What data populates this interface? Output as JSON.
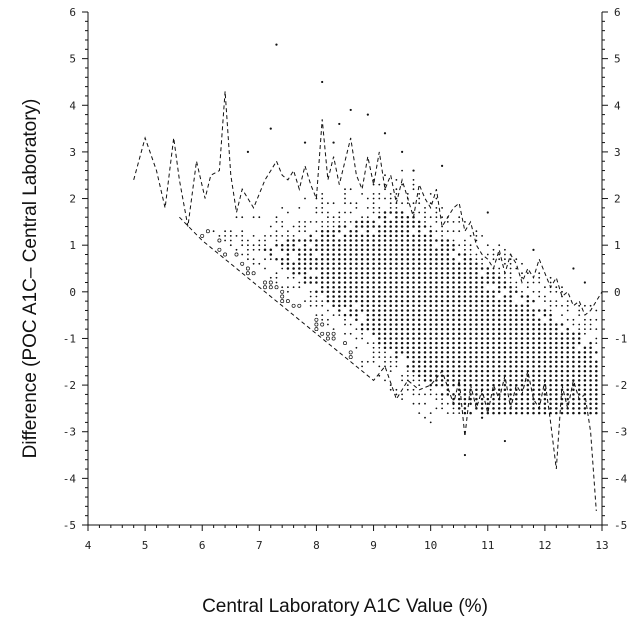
{
  "chart_data": {
    "type": "scatter",
    "title": "",
    "xlabel": "Central Laboratory A1C Value (%)",
    "ylabel": "Difference  (POC A1C– Central Laboratory)",
    "xlim": [
      4,
      13
    ],
    "ylim": [
      -5,
      6
    ],
    "xticks": [
      "4",
      "5",
      "6",
      "7",
      "8",
      "9",
      "10",
      "11",
      "12",
      "13"
    ],
    "yticks": [
      "-5",
      "-4",
      "-3",
      "-2",
      "-1",
      "0",
      "1",
      "2",
      "3",
      "4",
      "5",
      "6"
    ],
    "grid": false,
    "legend": "none",
    "colors": {
      "ink": "#111111",
      "background": "#ffffff"
    },
    "series": [
      {
        "kind": "dashed-line",
        "x": [
          4.8,
          5.0,
          5.2,
          5.35,
          5.5,
          5.6,
          5.75,
          5.9,
          6.05,
          6.15,
          6.3,
          6.4,
          6.5,
          6.6,
          6.7,
          6.8,
          6.9,
          7.0,
          7.1,
          7.2,
          7.3,
          7.4,
          7.5,
          7.6,
          7.7,
          7.8,
          7.9,
          8.0,
          8.1,
          8.2,
          8.3,
          8.4,
          8.5,
          8.6,
          8.7,
          8.8,
          8.9,
          9.0,
          9.1,
          9.2,
          9.3,
          9.4,
          9.5,
          9.6,
          9.7,
          9.8,
          9.9,
          10.0,
          10.1,
          10.2,
          10.3,
          10.4,
          10.5,
          10.6,
          10.7,
          10.8,
          10.9,
          11.0,
          11.1,
          11.2,
          11.3,
          11.4,
          11.5,
          11.6,
          11.7,
          11.8,
          11.9,
          12.0,
          12.1,
          12.2,
          12.3,
          12.4,
          12.5,
          12.6,
          12.7,
          12.8,
          12.9,
          13.0
        ],
        "y": [
          2.4,
          3.3,
          2.6,
          1.8,
          3.3,
          2.4,
          1.4,
          2.8,
          2.0,
          2.5,
          2.6,
          4.3,
          2.5,
          1.7,
          2.2,
          2.0,
          1.8,
          2.1,
          2.4,
          2.6,
          2.8,
          2.5,
          2.4,
          2.6,
          2.2,
          2.7,
          2.3,
          2.0,
          3.7,
          2.4,
          2.9,
          2.3,
          2.8,
          3.3,
          2.5,
          2.2,
          2.9,
          2.3,
          3.0,
          2.2,
          2.5,
          1.9,
          2.4,
          2.0,
          1.6,
          2.3,
          2.0,
          1.8,
          2.2,
          1.4,
          1.6,
          1.8,
          1.9,
          1.3,
          1.5,
          1.0,
          0.8,
          0.7,
          0.5,
          0.9,
          0.4,
          0.8,
          0.6,
          0.2,
          0.5,
          0.3,
          0.7,
          0.4,
          0.1,
          0.3,
          -0.1,
          0.0,
          -0.3,
          -0.2,
          -0.5,
          -0.4,
          -0.2,
          0.0
        ]
      },
      {
        "kind": "dashed-line",
        "x": [
          5.6,
          6.0,
          6.5,
          7.0,
          7.5,
          8.0,
          8.5,
          9.0,
          9.2,
          9.4,
          9.6,
          9.8,
          10.0,
          10.2,
          10.4,
          10.5,
          10.6,
          10.7,
          10.8,
          10.9,
          11.0,
          11.1,
          11.2,
          11.3,
          11.4,
          11.5,
          11.6,
          11.7,
          11.8,
          11.9,
          12.0,
          12.1,
          12.2,
          12.3,
          12.4,
          12.5,
          12.6,
          12.7,
          12.8,
          12.9
        ],
        "y": [
          1.6,
          1.1,
          0.6,
          0.1,
          -0.4,
          -0.9,
          -1.4,
          -1.9,
          -1.6,
          -2.3,
          -1.9,
          -2.1,
          -2.0,
          -1.7,
          -2.4,
          -1.9,
          -3.1,
          -2.0,
          -2.5,
          -2.1,
          -2.6,
          -2.0,
          -2.3,
          -1.8,
          -2.5,
          -2.0,
          -2.2,
          -1.7,
          -2.3,
          -2.5,
          -1.9,
          -2.8,
          -3.8,
          -2.0,
          -2.5,
          -1.9,
          -2.3,
          -2.2,
          -3.0,
          -4.7
        ]
      }
    ],
    "scatter_points": {
      "x": [
        7.3,
        8.1,
        7.2,
        8.6,
        9.2,
        11.3,
        10.6,
        12.5,
        9.5,
        8.3,
        11.8,
        10.2,
        8.9,
        7.8,
        12.7,
        9.7,
        11.0,
        10.9,
        6.8,
        8.4
      ],
      "y": [
        5.3,
        4.5,
        3.5,
        3.9,
        3.4,
        -3.2,
        -3.5,
        0.5,
        3.0,
        3.2,
        0.9,
        2.7,
        3.8,
        3.2,
        0.2,
        2.6,
        1.7,
        -2.7,
        3.0,
        3.6
      ]
    }
  }
}
